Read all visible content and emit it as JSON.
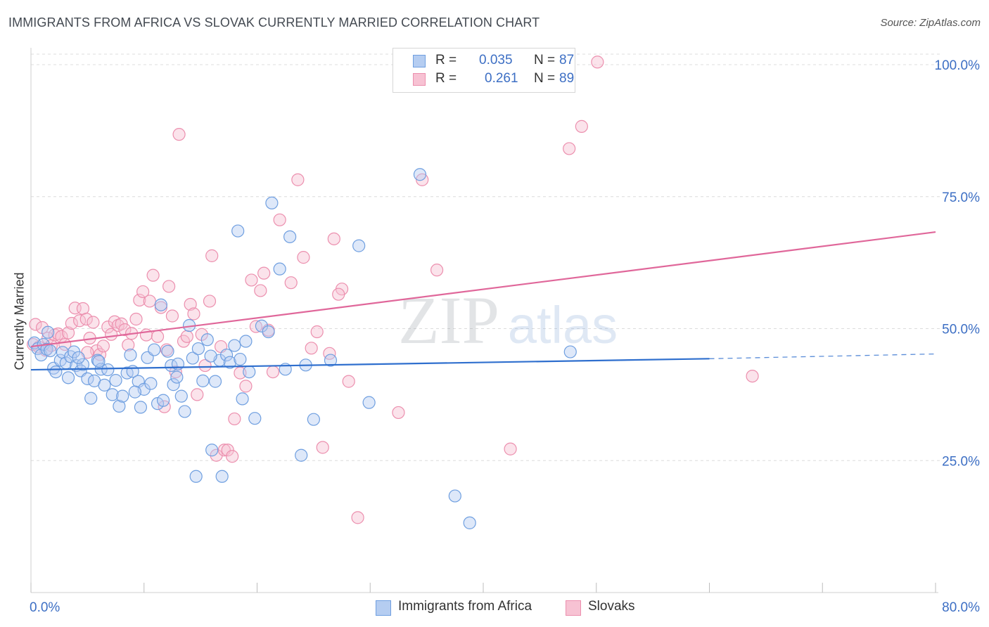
{
  "title": "IMMIGRANTS FROM AFRICA VS SLOVAK CURRENTLY MARRIED CORRELATION CHART",
  "source": "Source: ZipAtlas.com",
  "watermark": {
    "zip": "ZIP",
    "atlas": "atlas"
  },
  "legend": {
    "r_label": "R =",
    "n_label": "N =",
    "rows": [
      {
        "r": "0.035",
        "n": "87"
      },
      {
        "r": "0.261",
        "n": "89"
      }
    ]
  },
  "colors": {
    "blue": "#6f9fe0",
    "blue_fill": "#b5cdf1",
    "blue_line": "#2f6fce",
    "pink": "#ec8fae",
    "pink_fill": "#f7c2d3",
    "pink_line": "#e0679a",
    "accent_text": "#3d6fc4"
  },
  "chart_data": {
    "type": "scatter",
    "title": "IMMIGRANTS FROM AFRICA VS SLOVAK CURRENTLY MARRIED CORRELATION CHART",
    "xlabel": "",
    "ylabel": "Currently Married",
    "xlim": [
      0,
      80
    ],
    "ylim": [
      0,
      102
    ],
    "x_tick_labels": [
      "0.0%",
      "80.0%"
    ],
    "y_ticks": [
      25,
      50,
      75,
      100
    ],
    "y_tick_labels": [
      "25.0%",
      "50.0%",
      "75.0%",
      "100.0%"
    ],
    "grid": true,
    "legend_placement": "top-center",
    "series": [
      {
        "name": "Immigrants from Africa",
        "r": 0.035,
        "n": 87,
        "trend": {
          "x": [
            0,
            60
          ],
          "y": [
            42.2,
            44.3
          ],
          "dashed_to": [
            80,
            45.2
          ]
        },
        "points": [
          [
            0.3,
            47.3
          ],
          [
            0.6,
            46.2
          ],
          [
            0.9,
            45.0
          ],
          [
            1.1,
            47.0
          ],
          [
            1.4,
            46.1
          ],
          [
            1.7,
            45.8
          ],
          [
            2.0,
            42.5
          ],
          [
            2.2,
            41.8
          ],
          [
            2.6,
            44.0
          ],
          [
            2.8,
            45.5
          ],
          [
            3.1,
            43.5
          ],
          [
            3.3,
            40.7
          ],
          [
            3.5,
            44.7
          ],
          [
            3.8,
            45.6
          ],
          [
            4.0,
            43.0
          ],
          [
            4.4,
            42.0
          ],
          [
            4.6,
            43.2
          ],
          [
            5.0,
            40.5
          ],
          [
            5.3,
            36.8
          ],
          [
            5.6,
            40.1
          ],
          [
            5.9,
            44.0
          ],
          [
            6.2,
            42.3
          ],
          [
            6.5,
            39.3
          ],
          [
            6.8,
            42.2
          ],
          [
            7.2,
            37.5
          ],
          [
            7.5,
            40.2
          ],
          [
            7.8,
            35.3
          ],
          [
            8.1,
            37.2
          ],
          [
            8.5,
            41.6
          ],
          [
            8.8,
            45.0
          ],
          [
            9.0,
            41.9
          ],
          [
            9.5,
            40.0
          ],
          [
            9.7,
            35.1
          ],
          [
            10.0,
            38.5
          ],
          [
            10.3,
            44.5
          ],
          [
            10.6,
            39.6
          ],
          [
            10.9,
            46.0
          ],
          [
            11.2,
            35.8
          ],
          [
            11.5,
            54.5
          ],
          [
            11.7,
            36.4
          ],
          [
            12.1,
            45.7
          ],
          [
            12.4,
            43.0
          ],
          [
            12.6,
            39.4
          ],
          [
            13.0,
            43.3
          ],
          [
            13.3,
            37.2
          ],
          [
            13.6,
            34.3
          ],
          [
            14.0,
            50.6
          ],
          [
            14.3,
            44.4
          ],
          [
            14.6,
            22.0
          ],
          [
            14.8,
            46.2
          ],
          [
            15.2,
            40.1
          ],
          [
            15.6,
            47.9
          ],
          [
            16.0,
            27.0
          ],
          [
            16.3,
            40.0
          ],
          [
            16.7,
            44.0
          ],
          [
            16.9,
            22.0
          ],
          [
            17.3,
            45.0
          ],
          [
            17.6,
            43.6
          ],
          [
            18.0,
            46.8
          ],
          [
            18.3,
            68.5
          ],
          [
            18.7,
            36.7
          ],
          [
            19.0,
            47.6
          ],
          [
            19.3,
            41.8
          ],
          [
            19.8,
            33.0
          ],
          [
            20.4,
            50.5
          ],
          [
            21.3,
            73.8
          ],
          [
            22.0,
            61.3
          ],
          [
            22.5,
            42.3
          ],
          [
            22.9,
            67.4
          ],
          [
            23.9,
            26.0
          ],
          [
            24.3,
            43.1
          ],
          [
            25.0,
            32.8
          ],
          [
            26.5,
            44.0
          ],
          [
            29.0,
            65.7
          ],
          [
            29.9,
            36.0
          ],
          [
            34.4,
            79.2
          ],
          [
            37.5,
            18.3
          ],
          [
            38.8,
            13.2
          ],
          [
            47.7,
            45.6
          ],
          [
            1.5,
            49.3
          ],
          [
            4.2,
            44.5
          ],
          [
            6.0,
            43.8
          ],
          [
            9.2,
            38.0
          ],
          [
            12.9,
            40.8
          ],
          [
            15.9,
            44.8
          ],
          [
            18.5,
            44.2
          ],
          [
            21.0,
            49.4
          ]
        ]
      },
      {
        "name": "Slovaks",
        "r": 0.261,
        "n": 89,
        "trend": {
          "x": [
            0,
            80
          ],
          "y": [
            46.6,
            68.3
          ]
        },
        "points": [
          [
            0.2,
            47.0
          ],
          [
            0.4,
            50.8
          ],
          [
            0.7,
            46.5
          ],
          [
            1.0,
            50.2
          ],
          [
            1.3,
            45.9
          ],
          [
            1.5,
            48.2
          ],
          [
            1.8,
            46.8
          ],
          [
            2.1,
            48.8
          ],
          [
            2.4,
            49.0
          ],
          [
            2.7,
            48.5
          ],
          [
            3.0,
            47.0
          ],
          [
            3.3,
            49.2
          ],
          [
            3.6,
            51.0
          ],
          [
            3.9,
            53.9
          ],
          [
            4.3,
            51.5
          ],
          [
            4.6,
            53.8
          ],
          [
            4.9,
            51.8
          ],
          [
            5.2,
            48.2
          ],
          [
            5.5,
            51.2
          ],
          [
            5.8,
            45.8
          ],
          [
            6.1,
            45.1
          ],
          [
            6.4,
            46.7
          ],
          [
            6.8,
            50.3
          ],
          [
            7.1,
            48.9
          ],
          [
            7.4,
            51.3
          ],
          [
            7.7,
            50.6
          ],
          [
            8.0,
            50.9
          ],
          [
            8.3,
            49.8
          ],
          [
            8.6,
            46.9
          ],
          [
            8.9,
            49.1
          ],
          [
            9.3,
            51.8
          ],
          [
            9.6,
            55.4
          ],
          [
            9.9,
            57.0
          ],
          [
            10.2,
            48.8
          ],
          [
            10.5,
            55.2
          ],
          [
            10.8,
            60.1
          ],
          [
            11.2,
            48.5
          ],
          [
            11.5,
            54.0
          ],
          [
            11.8,
            35.2
          ],
          [
            12.2,
            58.0
          ],
          [
            12.5,
            52.4
          ],
          [
            12.8,
            41.8
          ],
          [
            13.1,
            86.8
          ],
          [
            13.5,
            47.6
          ],
          [
            13.8,
            48.5
          ],
          [
            14.1,
            54.6
          ],
          [
            14.4,
            52.8
          ],
          [
            14.7,
            37.5
          ],
          [
            15.1,
            48.9
          ],
          [
            15.4,
            43.0
          ],
          [
            15.8,
            55.2
          ],
          [
            16.0,
            63.8
          ],
          [
            16.4,
            26.0
          ],
          [
            16.8,
            46.6
          ],
          [
            17.1,
            27.0
          ],
          [
            17.4,
            27.0
          ],
          [
            17.8,
            25.8
          ],
          [
            18.0,
            32.9
          ],
          [
            18.5,
            41.6
          ],
          [
            19.0,
            39.1
          ],
          [
            19.5,
            59.2
          ],
          [
            19.9,
            50.4
          ],
          [
            20.3,
            57.2
          ],
          [
            20.6,
            60.5
          ],
          [
            21.0,
            49.7
          ],
          [
            21.4,
            41.8
          ],
          [
            22.0,
            70.6
          ],
          [
            23.0,
            58.7
          ],
          [
            23.6,
            78.2
          ],
          [
            24.1,
            63.5
          ],
          [
            24.8,
            46.3
          ],
          [
            25.3,
            49.4
          ],
          [
            25.8,
            27.5
          ],
          [
            26.4,
            45.3
          ],
          [
            26.8,
            67.0
          ],
          [
            27.5,
            57.5
          ],
          [
            28.1,
            40.0
          ],
          [
            28.9,
            14.2
          ],
          [
            32.5,
            34.1
          ],
          [
            34.6,
            78.2
          ],
          [
            35.9,
            61.1
          ],
          [
            42.4,
            27.2
          ],
          [
            47.6,
            84.1
          ],
          [
            48.7,
            88.3
          ],
          [
            50.1,
            100.5
          ],
          [
            63.8,
            41.0
          ],
          [
            5.0,
            45.5
          ],
          [
            12.0,
            46.0
          ],
          [
            27.2,
            56.5
          ]
        ]
      }
    ]
  },
  "bottom_legend": [
    "Immigrants from Africa",
    "Slovaks"
  ]
}
